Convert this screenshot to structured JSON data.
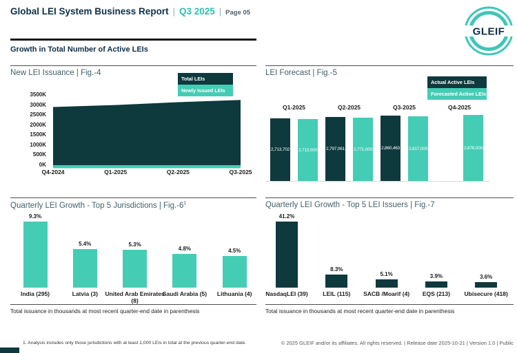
{
  "page": {
    "title": "Global LEI System Business Report",
    "sep": "|",
    "period": "Q3 2025",
    "page_label": "Page 05",
    "section_title": "Growth in Total Number of Active LEIs",
    "logo": "GLEIF"
  },
  "colors": {
    "dark_teal": "#0e393d",
    "light_teal": "#45ccb5",
    "logo_teal": "#3ec6b8",
    "navy": "#0f2e47"
  },
  "chart_data": [
    {
      "id": "fig4",
      "type": "area",
      "title": "New LEI Issuance | Fig.-4",
      "categories": [
        "Q4-2024",
        "Q1-2025",
        "Q2-2025",
        "Q3-2025"
      ],
      "series": [
        {
          "name": "Total LEIs",
          "color_key": "dark_teal",
          "values_thousands": [
            2900,
            3000,
            3140,
            3250
          ]
        },
        {
          "name": "Newly Issued LEIs",
          "color_key": "light_teal",
          "values_thousands": [
            140,
            142,
            145,
            148
          ]
        }
      ],
      "ylim_thousands": [
        0,
        3500
      ],
      "ytick_labels": [
        "0K",
        "500K",
        "1000K",
        "1500K",
        "2000K",
        "2500K",
        "3000K",
        "3500K"
      ],
      "legend_position": "top-right",
      "grid": false
    },
    {
      "id": "fig5",
      "type": "grouped_bar",
      "title": "LEI Forecast | Fig.-5",
      "categories": [
        "Q1-2025",
        "Q2-2025",
        "Q3-2025",
        "Q4-2025"
      ],
      "series": [
        {
          "name": "Actual Active LEIs",
          "color_key": "dark_teal",
          "values": [
            2713702,
            2797061,
            2860463,
            null
          ],
          "labels": [
            "2,713,702",
            "2,797,061",
            "2,860,463",
            ""
          ]
        },
        {
          "name": "Forecasted Active LEIs",
          "color_key": "light_teal",
          "values": [
            2713000,
            2771000,
            2817000,
            2878000
          ],
          "labels": [
            "2,713,000",
            "2,771,000",
            "2,817,000",
            "2,878,000"
          ]
        }
      ],
      "legend_position": "top-right",
      "grid": false
    },
    {
      "id": "fig6",
      "type": "bar",
      "title": "Quarterly LEI Growth - Top 5 Jurisdictions | Fig.-6",
      "title_superscript": "1",
      "categories": [
        "India (295)",
        "Latvia (3)",
        "United Arab Emirates (8)",
        "Saudi Arabia (5)",
        "Lithuania (4)"
      ],
      "values_percent": [
        9.3,
        5.4,
        5.3,
        4.8,
        4.5
      ],
      "value_labels": [
        "9.3%",
        "5.4%",
        "5.3%",
        "4.8%",
        "4.5%"
      ],
      "bar_color_key": "light_teal",
      "caption": "Total issuance in thousands at most recent quarter-end date in parenthesis",
      "grid": false
    },
    {
      "id": "fig7",
      "type": "bar",
      "title": "Quarterly LEI Growth - Top 5 LEI Issuers | Fig.-7",
      "categories": [
        "NasdaqLEI (39)",
        "LEIL (115)",
        "SACB /Moarif (4)",
        "EQS (213)",
        "Ubisecure (418)"
      ],
      "values_percent": [
        41.2,
        8.3,
        5.1,
        3.9,
        3.6
      ],
      "value_labels": [
        "41.2%",
        "8.3%",
        "5.1%",
        "3.9%",
        "3.6%"
      ],
      "bar_color_key": "dark_teal",
      "caption": "Total issuance in thousands at most recent quarter-end date in parenthesis",
      "grid": false
    }
  ],
  "footer": {
    "footnote": "1. Analysis includes only those jurisdictions with at least 1,000 LEIs in total at the previous quarter-end date.",
    "copyright": "© 2025 GLEIF and/or its affiliates. All rights reserved. | Release date 2025-10-21 | Version 1.0 | Public"
  }
}
